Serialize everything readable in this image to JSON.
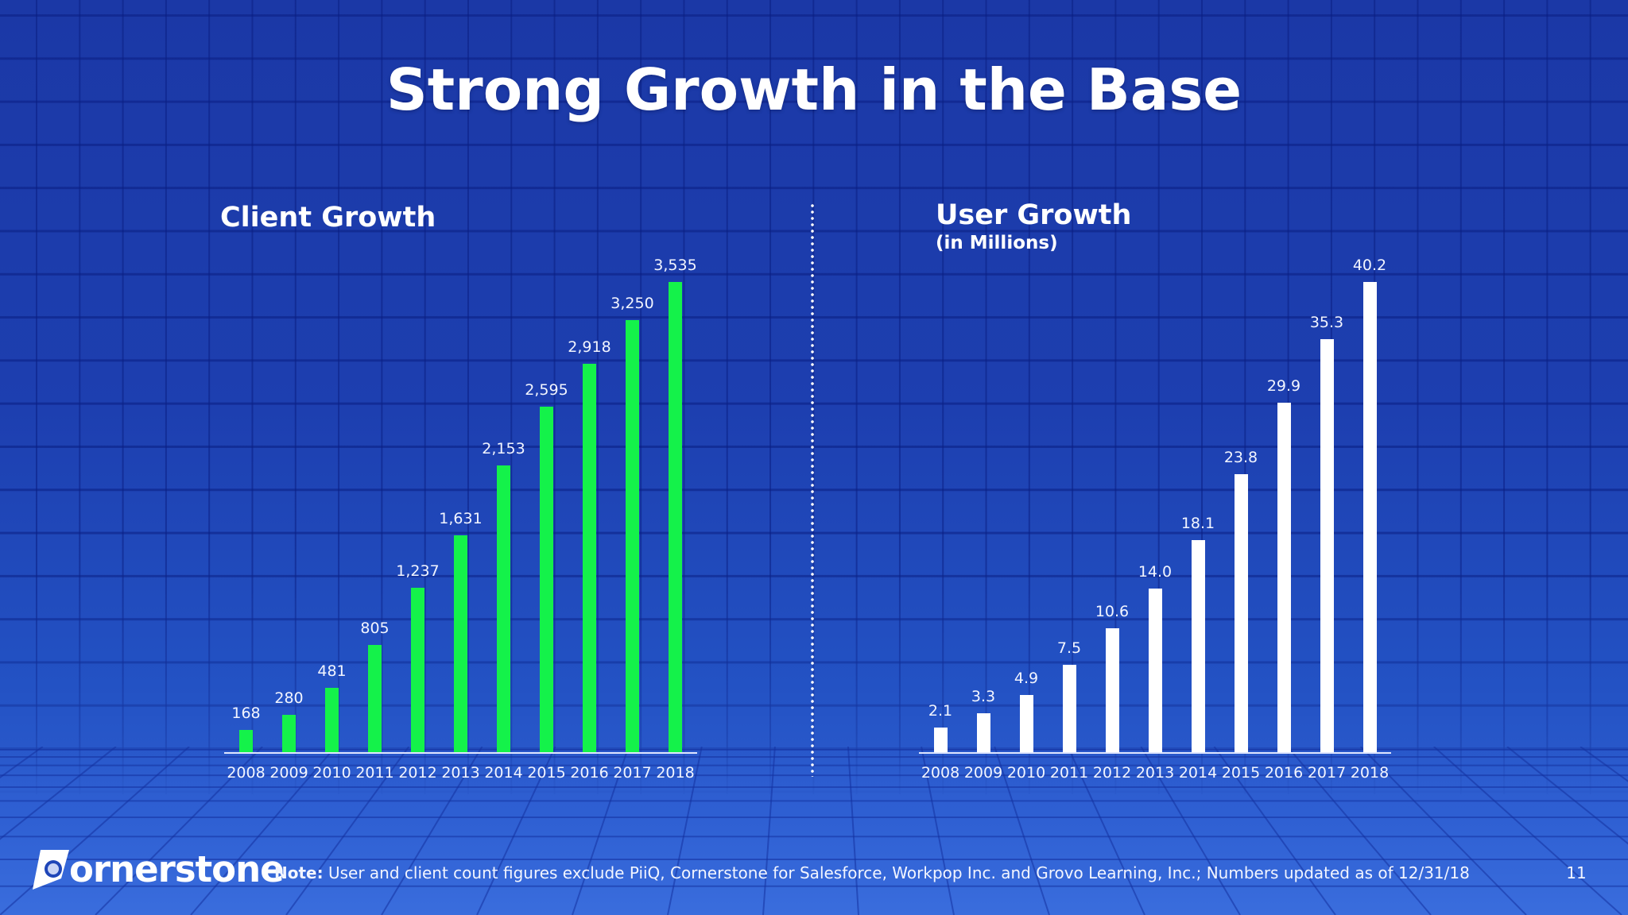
{
  "slide": {
    "title": "Strong Growth in the Base",
    "page_number": "11",
    "note_label": "Note:",
    "note_text": "User and client count figures exclude PiiQ, Cornerstone for Salesforce, Workpop Inc. and Grovo Learning, Inc.; Numbers updated as of 12/31/18",
    "logo_text": "ornerstone",
    "logo_name": "cornerstone"
  },
  "colors": {
    "background": "#1d3fb0",
    "client_bars": "#14f24a",
    "user_bars": "#ffffff",
    "text": "#ffffff"
  },
  "chart_data": [
    {
      "type": "bar",
      "title": "Client Growth",
      "subtitle": "",
      "xlabel": "",
      "ylabel": "",
      "categories": [
        "2008",
        "2009",
        "2010",
        "2011",
        "2012",
        "2013",
        "2014",
        "2015",
        "2016",
        "2017",
        "2018"
      ],
      "values": [
        168,
        280,
        481,
        805,
        1237,
        1631,
        2153,
        2595,
        2918,
        3250,
        3535
      ],
      "value_labels": [
        "168",
        "280",
        "481",
        "805",
        "1,237",
        "1,631",
        "2,153",
        "2,595",
        "2,918",
        "3,250",
        "3,535"
      ],
      "bar_color": "#14f24a",
      "grid": false,
      "legend": "none",
      "ylim": [
        0,
        3535
      ]
    },
    {
      "type": "bar",
      "title": "User Growth",
      "subtitle": "(in Millions)",
      "xlabel": "",
      "ylabel": "",
      "categories": [
        "2008",
        "2009",
        "2010",
        "2011",
        "2012",
        "2013",
        "2014",
        "2015",
        "2016",
        "2017",
        "2018"
      ],
      "values": [
        2.1,
        3.3,
        4.9,
        7.5,
        10.6,
        14.0,
        18.1,
        23.8,
        29.9,
        35.3,
        40.2
      ],
      "value_labels": [
        "2.1",
        "3.3",
        "4.9",
        "7.5",
        "10.6",
        "14.0",
        "18.1",
        "23.8",
        "29.9",
        "35.3",
        "40.2"
      ],
      "bar_color": "#ffffff",
      "grid": false,
      "legend": "none",
      "ylim": [
        0,
        40.2
      ]
    }
  ]
}
